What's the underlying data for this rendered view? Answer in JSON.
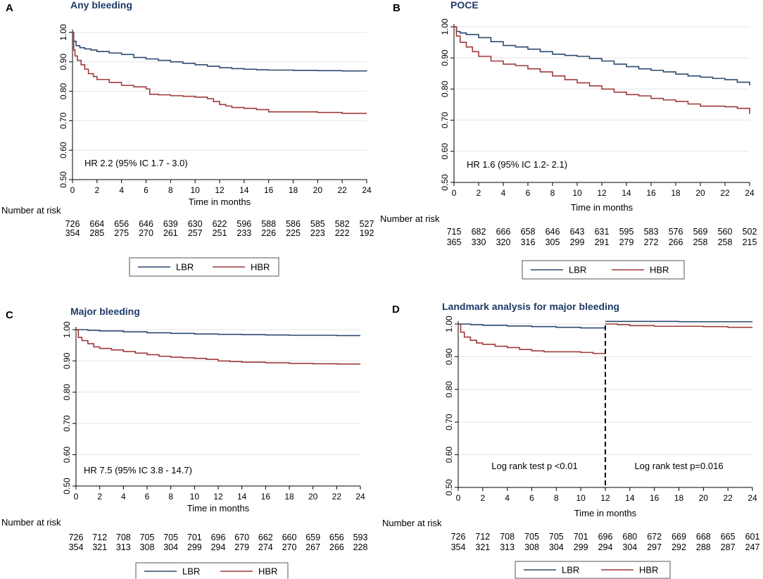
{
  "figure": {
    "x_axis_label": "Time in months",
    "number_at_risk_label": "Number at risk",
    "legend": {
      "lbr": "LBR",
      "hbr": "HBR"
    },
    "colors": {
      "lbr": "#2b4a6f",
      "hbr": "#a03a3a",
      "title": "#1f3a68",
      "axis": "#000000",
      "grid": "#e4e4e4"
    }
  },
  "chart_data": [
    {
      "panel": "A",
      "type": "line",
      "title": "Any bleeding",
      "xlabel": "Time in months",
      "ylabel": "",
      "xlim": [
        0,
        24
      ],
      "ylim": [
        0.5,
        1.0
      ],
      "xticks": [
        "0",
        "2",
        "4",
        "6",
        "8",
        "10",
        "12",
        "14",
        "16",
        "18",
        "20",
        "22",
        "24"
      ],
      "yticks": [
        "0.50",
        "0.60",
        "0.70",
        "0.80",
        "0.90",
        "1.00"
      ],
      "annotation": "HR 2.2 (95% IC 1.7 - 3.0)",
      "landmark": null,
      "series": [
        {
          "name": "LBR",
          "x": [
            0,
            0.1,
            0.3,
            0.6,
            1,
            1.5,
            2,
            3,
            4,
            5,
            6,
            7,
            8,
            9,
            10,
            11,
            12,
            13,
            14,
            15,
            16,
            18,
            20,
            22,
            24
          ],
          "y": [
            1.0,
            0.97,
            0.955,
            0.948,
            0.944,
            0.94,
            0.935,
            0.93,
            0.925,
            0.915,
            0.91,
            0.905,
            0.9,
            0.895,
            0.89,
            0.885,
            0.88,
            0.877,
            0.875,
            0.873,
            0.872,
            0.871,
            0.87,
            0.869,
            0.868
          ]
        },
        {
          "name": "HBR",
          "x": [
            0,
            0.1,
            0.2,
            0.4,
            0.7,
            1,
            1.3,
            1.7,
            2,
            3,
            4,
            5,
            6,
            6.3,
            7,
            8,
            9,
            10,
            11,
            11.5,
            12,
            12.5,
            13,
            14,
            15,
            16,
            18,
            20,
            22,
            24
          ],
          "y": [
            1.0,
            0.94,
            0.92,
            0.905,
            0.89,
            0.875,
            0.86,
            0.85,
            0.84,
            0.83,
            0.82,
            0.815,
            0.808,
            0.79,
            0.788,
            0.785,
            0.783,
            0.78,
            0.775,
            0.765,
            0.755,
            0.75,
            0.745,
            0.742,
            0.738,
            0.73,
            0.73,
            0.728,
            0.725,
            0.725
          ]
        }
      ],
      "risk_table": {
        "LBR": [
          "726",
          "664",
          "656",
          "646",
          "639",
          "630",
          "622",
          "596",
          "588",
          "586",
          "585",
          "582",
          "527"
        ],
        "HBR": [
          "354",
          "285",
          "275",
          "270",
          "261",
          "257",
          "251",
          "233",
          "226",
          "225",
          "223",
          "222",
          "192"
        ]
      }
    },
    {
      "panel": "B",
      "type": "line",
      "title": "POCE",
      "xlabel": "Time in months",
      "ylabel": "",
      "xlim": [
        0,
        24
      ],
      "ylim": [
        0.5,
        1.0
      ],
      "xticks": [
        "0",
        "2",
        "4",
        "6",
        "8",
        "10",
        "12",
        "14",
        "16",
        "18",
        "20",
        "22",
        "24"
      ],
      "yticks": [
        "0.50",
        "0.60",
        "0.70",
        "0.80",
        "0.90",
        "1.00"
      ],
      "annotation": "HR 1.6 (95% IC 1.2- 2.1)",
      "landmark": null,
      "series": [
        {
          "name": "LBR",
          "x": [
            0,
            0.2,
            0.5,
            1,
            2,
            3,
            4,
            5,
            6,
            7,
            8,
            9,
            10,
            11,
            12,
            13,
            14,
            15,
            16,
            17,
            18,
            19,
            20,
            21,
            22,
            23,
            24
          ],
          "y": [
            1.0,
            0.985,
            0.98,
            0.975,
            0.965,
            0.952,
            0.94,
            0.935,
            0.928,
            0.92,
            0.912,
            0.908,
            0.905,
            0.898,
            0.89,
            0.88,
            0.872,
            0.865,
            0.86,
            0.855,
            0.848,
            0.842,
            0.838,
            0.834,
            0.83,
            0.822,
            0.812
          ]
        },
        {
          "name": "HBR",
          "x": [
            0,
            0.2,
            0.5,
            1,
            1.5,
            2,
            3,
            4,
            5,
            6,
            7,
            8,
            9,
            10,
            11,
            12,
            13,
            14,
            15,
            16,
            17,
            18,
            19,
            20,
            21,
            22,
            23,
            24
          ],
          "y": [
            1.0,
            0.97,
            0.95,
            0.935,
            0.92,
            0.905,
            0.89,
            0.88,
            0.875,
            0.865,
            0.855,
            0.842,
            0.83,
            0.82,
            0.81,
            0.8,
            0.79,
            0.782,
            0.778,
            0.77,
            0.765,
            0.76,
            0.752,
            0.745,
            0.745,
            0.743,
            0.738,
            0.72
          ]
        }
      ],
      "risk_table": {
        "LBR": [
          "715",
          "682",
          "666",
          "658",
          "646",
          "643",
          "631",
          "595",
          "583",
          "576",
          "569",
          "560",
          "502"
        ],
        "HBR": [
          "365",
          "330",
          "320",
          "316",
          "305",
          "299",
          "291",
          "279",
          "272",
          "266",
          "258",
          "258",
          "215"
        ]
      }
    },
    {
      "panel": "C",
      "type": "line",
      "title": "Major bleeding",
      "xlabel": "Time in months",
      "ylabel": "",
      "xlim": [
        0,
        24
      ],
      "ylim": [
        0.5,
        1.0
      ],
      "xticks": [
        "0",
        "2",
        "4",
        "6",
        "8",
        "10",
        "12",
        "14",
        "16",
        "18",
        "20",
        "22",
        "24"
      ],
      "yticks": [
        "0.50",
        "0.60",
        "0.70",
        "0.80",
        "0.90",
        "1.00"
      ],
      "annotation": "HR 7.5 (95% IC 3.8 - 14.7)",
      "landmark": null,
      "series": [
        {
          "name": "LBR",
          "x": [
            0,
            1,
            2,
            4,
            6,
            8,
            10,
            12,
            14,
            16,
            18,
            20,
            22,
            24
          ],
          "y": [
            1.0,
            0.998,
            0.996,
            0.993,
            0.99,
            0.988,
            0.986,
            0.985,
            0.984,
            0.983,
            0.982,
            0.982,
            0.981,
            0.981
          ]
        },
        {
          "name": "HBR",
          "x": [
            0,
            0.2,
            0.5,
            1,
            1.5,
            2,
            3,
            4,
            5,
            6,
            7,
            8,
            9,
            10,
            11,
            12,
            13,
            14,
            16,
            18,
            20,
            22,
            24
          ],
          "y": [
            1.0,
            0.975,
            0.965,
            0.955,
            0.945,
            0.94,
            0.935,
            0.93,
            0.925,
            0.92,
            0.915,
            0.912,
            0.91,
            0.908,
            0.905,
            0.9,
            0.898,
            0.896,
            0.894,
            0.892,
            0.891,
            0.89,
            0.89
          ]
        }
      ],
      "risk_table": {
        "LBR": [
          "726",
          "712",
          "708",
          "705",
          "705",
          "701",
          "696",
          "670",
          "662",
          "660",
          "659",
          "656",
          "593"
        ],
        "HBR": [
          "354",
          "321",
          "313",
          "308",
          "304",
          "299",
          "294",
          "279",
          "274",
          "270",
          "267",
          "266",
          "228"
        ]
      }
    },
    {
      "panel": "D",
      "type": "line",
      "title": "Landmark analysis for major bleeding",
      "xlabel": "Time in months",
      "ylabel": "",
      "xlim": [
        0,
        24
      ],
      "ylim": [
        0.5,
        1.0
      ],
      "xticks": [
        "0",
        "2",
        "4",
        "6",
        "8",
        "10",
        "12",
        "14",
        "16",
        "18",
        "20",
        "22",
        "24"
      ],
      "yticks": [
        "0.50",
        "0.60",
        "0.70",
        "0.80",
        "0.90",
        "1.00"
      ],
      "annotation": null,
      "landmark": {
        "x": 12,
        "left_text": "Log rank test p <0.01",
        "right_text": "Log rank test p=0.016"
      },
      "series": [
        {
          "name": "LBR",
          "x": [
            0,
            1,
            2,
            4,
            6,
            8,
            10,
            12
          ],
          "y": [
            1.0,
            0.998,
            0.996,
            0.994,
            0.992,
            0.99,
            0.988,
            0.985
          ]
        },
        {
          "name": "HBR",
          "x": [
            0,
            0.2,
            0.5,
            1,
            1.5,
            2,
            3,
            4,
            5,
            6,
            7,
            8,
            9,
            10,
            11,
            12
          ],
          "y": [
            1.0,
            0.975,
            0.96,
            0.95,
            0.942,
            0.938,
            0.932,
            0.928,
            0.922,
            0.918,
            0.915,
            0.915,
            0.915,
            0.913,
            0.91,
            0.908
          ]
        },
        {
          "name": "LBR",
          "x": [
            12,
            14,
            16,
            18,
            20,
            22,
            24
          ],
          "y": [
            1.008,
            1.008,
            1.008,
            1.007,
            1.007,
            1.007,
            1.007
          ]
        },
        {
          "name": "HBR",
          "x": [
            12,
            13,
            14,
            16,
            18,
            20,
            22,
            24
          ],
          "y": [
            1.0,
            0.998,
            0.995,
            0.993,
            0.993,
            0.992,
            0.99,
            0.99
          ]
        }
      ],
      "risk_table": {
        "LBR": [
          "726",
          "712",
          "708",
          "705",
          "705",
          "701",
          "696",
          "680",
          "672",
          "669",
          "668",
          "665",
          "601"
        ],
        "HBR": [
          "354",
          "321",
          "313",
          "308",
          "304",
          "299",
          "294",
          "304",
          "297",
          "292",
          "288",
          "287",
          "247"
        ]
      }
    }
  ]
}
